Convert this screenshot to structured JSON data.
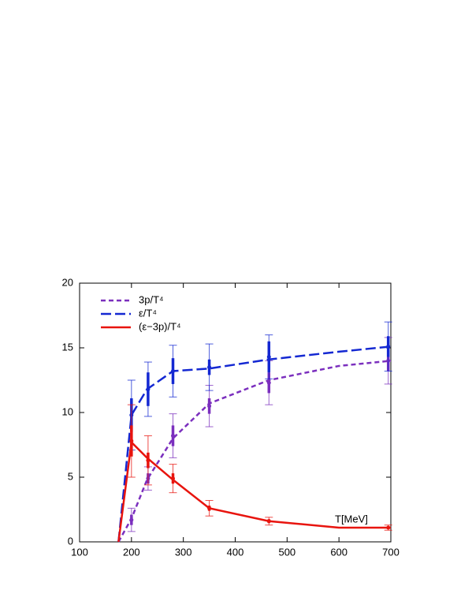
{
  "chart_data": {
    "type": "line",
    "annotation": "T[MeV]",
    "xlim": [
      100,
      700
    ],
    "xticks": [
      100,
      200,
      300,
      400,
      500,
      600,
      700
    ],
    "ylim": [
      0,
      20
    ],
    "yticks": [
      0,
      5,
      10,
      15,
      20
    ],
    "legend": "top-left",
    "series": [
      {
        "name": "3p/T⁴",
        "color": "#7b2fbe",
        "dash": "6,4",
        "x": [
          175,
          200,
          230,
          280,
          350,
          465,
          600,
          700
        ],
        "values": [
          0,
          1.8,
          4.8,
          8.0,
          10.7,
          12.5,
          13.6,
          14.0
        ],
        "points": {
          "x": [
            200,
            232,
            280,
            350,
            465,
            695
          ],
          "values": [
            1.7,
            4.9,
            8.2,
            10.5,
            12.3,
            14.0
          ],
          "errors": [
            0.9,
            0.9,
            1.7,
            1.6,
            1.7,
            1.8
          ],
          "errors_inner": [
            0.4,
            0.4,
            0.8,
            0.6,
            0.8,
            0.8
          ]
        }
      },
      {
        "name": "ε/T⁴",
        "color": "#1428d2",
        "dash": "13,5",
        "x": [
          175,
          200,
          230,
          280,
          350,
          465,
          600,
          700
        ],
        "values": [
          0,
          9.8,
          11.8,
          13.2,
          13.4,
          14.1,
          14.7,
          15.1
        ],
        "points": {
          "x": [
            200,
            232,
            280,
            350,
            465,
            695
          ],
          "values": [
            9.8,
            11.8,
            13.2,
            13.5,
            14.3,
            15.1
          ],
          "errors": [
            2.7,
            2.1,
            2.0,
            1.8,
            1.7,
            1.9
          ],
          "errors_inner": [
            1.3,
            1.3,
            1.0,
            0.6,
            1.2,
            0.8
          ]
        }
      },
      {
        "name": "(ε−3p)/T⁴",
        "color": "#e8140e",
        "dash": "none",
        "x": [
          175,
          200,
          230,
          280,
          350,
          465,
          600,
          700
        ],
        "values": [
          0,
          7.7,
          6.5,
          4.8,
          2.6,
          1.6,
          1.1,
          1.1
        ],
        "points": {
          "x": [
            200,
            232,
            280,
            350,
            465,
            695
          ],
          "values": [
            7.8,
            6.3,
            4.9,
            2.6,
            1.6,
            1.1
          ],
          "errors": [
            2.8,
            1.9,
            1.1,
            0.6,
            0.3,
            0.2
          ],
          "errors_inner": [
            1.2,
            0.6,
            0.4,
            0.2,
            0.15,
            0.1
          ]
        }
      }
    ]
  }
}
